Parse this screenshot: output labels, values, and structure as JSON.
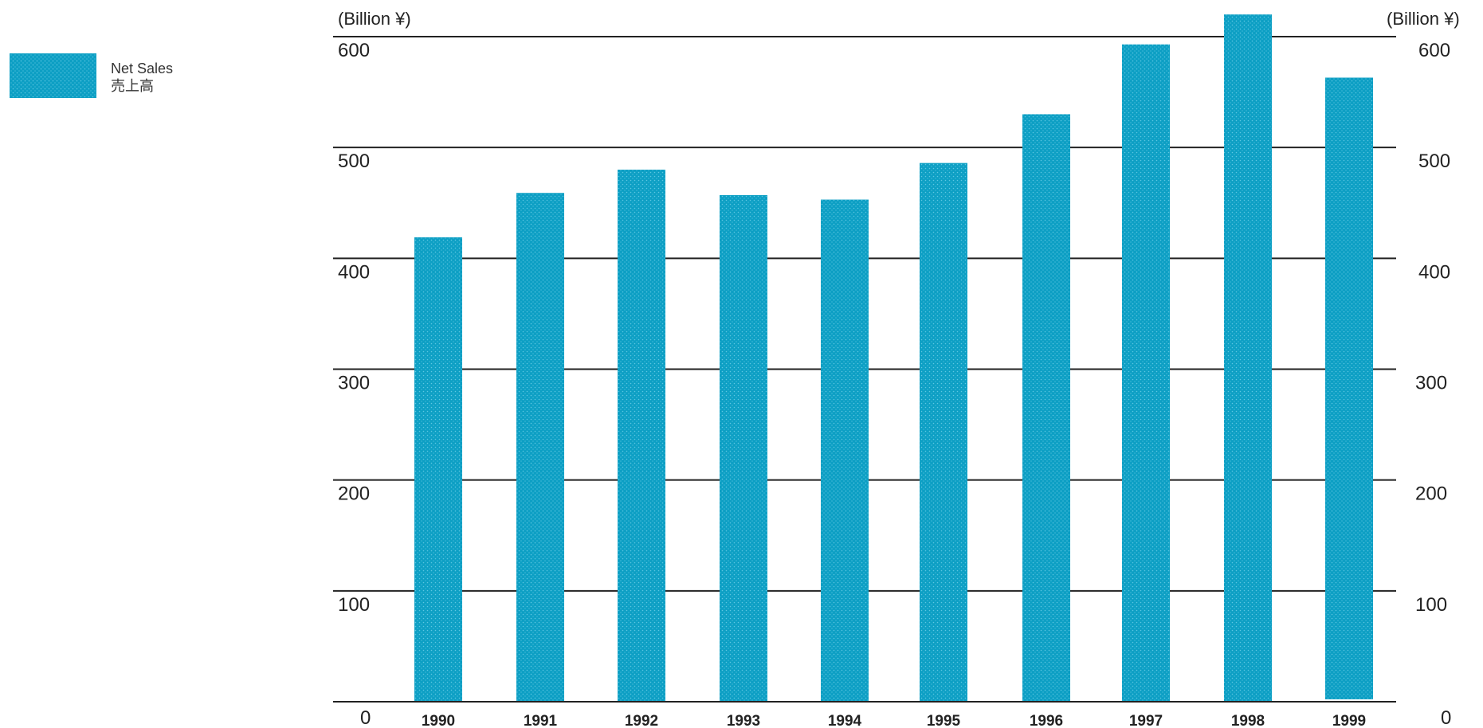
{
  "chart_data": {
    "type": "bar",
    "categories": [
      "1990",
      "1991",
      "1992",
      "1993",
      "1994",
      "1995",
      "1996",
      "1997",
      "1998",
      "1999"
    ],
    "series": [
      {
        "name": "Net Sales 売上高",
        "values": [
          419,
          459,
          480,
          457,
          453,
          486,
          530,
          593,
          620,
          563
        ]
      }
    ],
    "ylim": [
      0,
      600
    ],
    "yticks": [
      0,
      100,
      200,
      300,
      400,
      500,
      600
    ],
    "unit_left": "(Billion ¥)",
    "unit_right": "(Billion ¥)",
    "legend": {
      "line1": "Net Sales",
      "line2": "売上高",
      "placement": "top-left"
    },
    "grid": true,
    "colors": {
      "bar": "#0d9fc4",
      "bar_dot": "#5ec7e2",
      "grid": "#222222"
    }
  }
}
